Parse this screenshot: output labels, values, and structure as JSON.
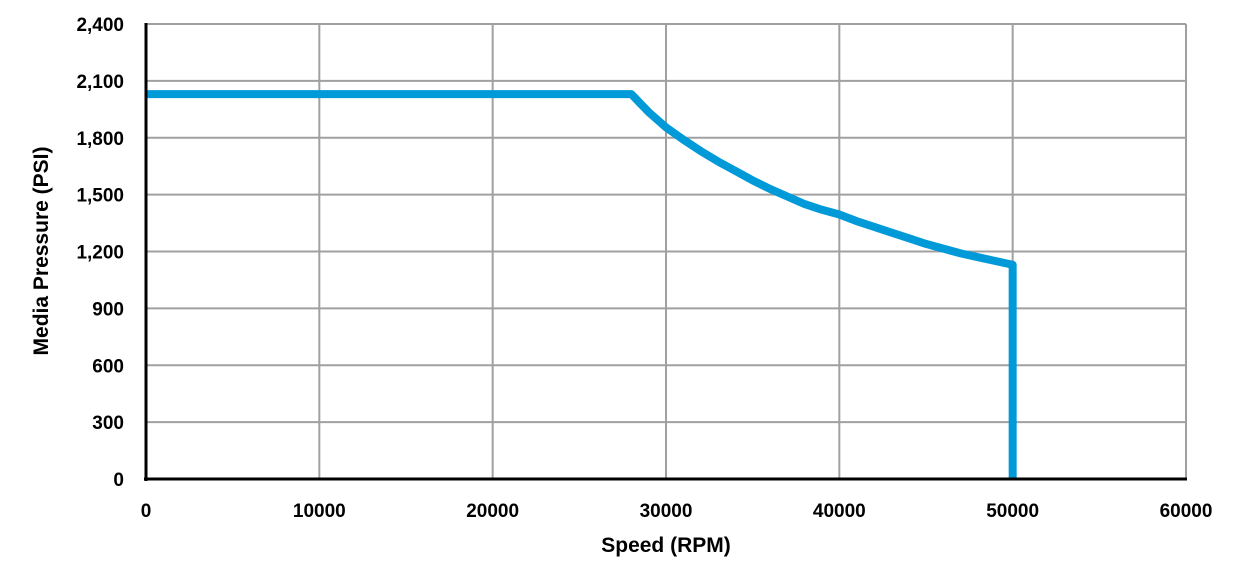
{
  "chart_data": {
    "type": "line",
    "title": "",
    "xlabel": "Speed (RPM)",
    "ylabel": "Media Pressure (PSI)",
    "xlim": [
      0,
      60000
    ],
    "ylim": [
      0,
      2400
    ],
    "x_ticks": [
      "0",
      "10000",
      "20000",
      "30000",
      "40000",
      "50000",
      "60000"
    ],
    "y_ticks": [
      "0",
      "300",
      "600",
      "900",
      "1,200",
      "1,500",
      "1,800",
      "2,100",
      "2,400"
    ],
    "grid": true,
    "legend": "none",
    "series": [
      {
        "color": "#009ad8",
        "x": [
          0,
          28000,
          29000,
          30000,
          31000,
          32000,
          33000,
          34000,
          35000,
          36000,
          37000,
          38000,
          39000,
          40000,
          41000,
          42000,
          43000,
          44000,
          45000,
          46000,
          47000,
          48000,
          49000,
          50000,
          50000
        ],
        "y": [
          2030,
          2030,
          1935,
          1855,
          1790,
          1730,
          1675,
          1625,
          1575,
          1530,
          1490,
          1450,
          1420,
          1395,
          1360,
          1330,
          1300,
          1270,
          1240,
          1215,
          1190,
          1170,
          1150,
          1130,
          0
        ]
      }
    ]
  }
}
